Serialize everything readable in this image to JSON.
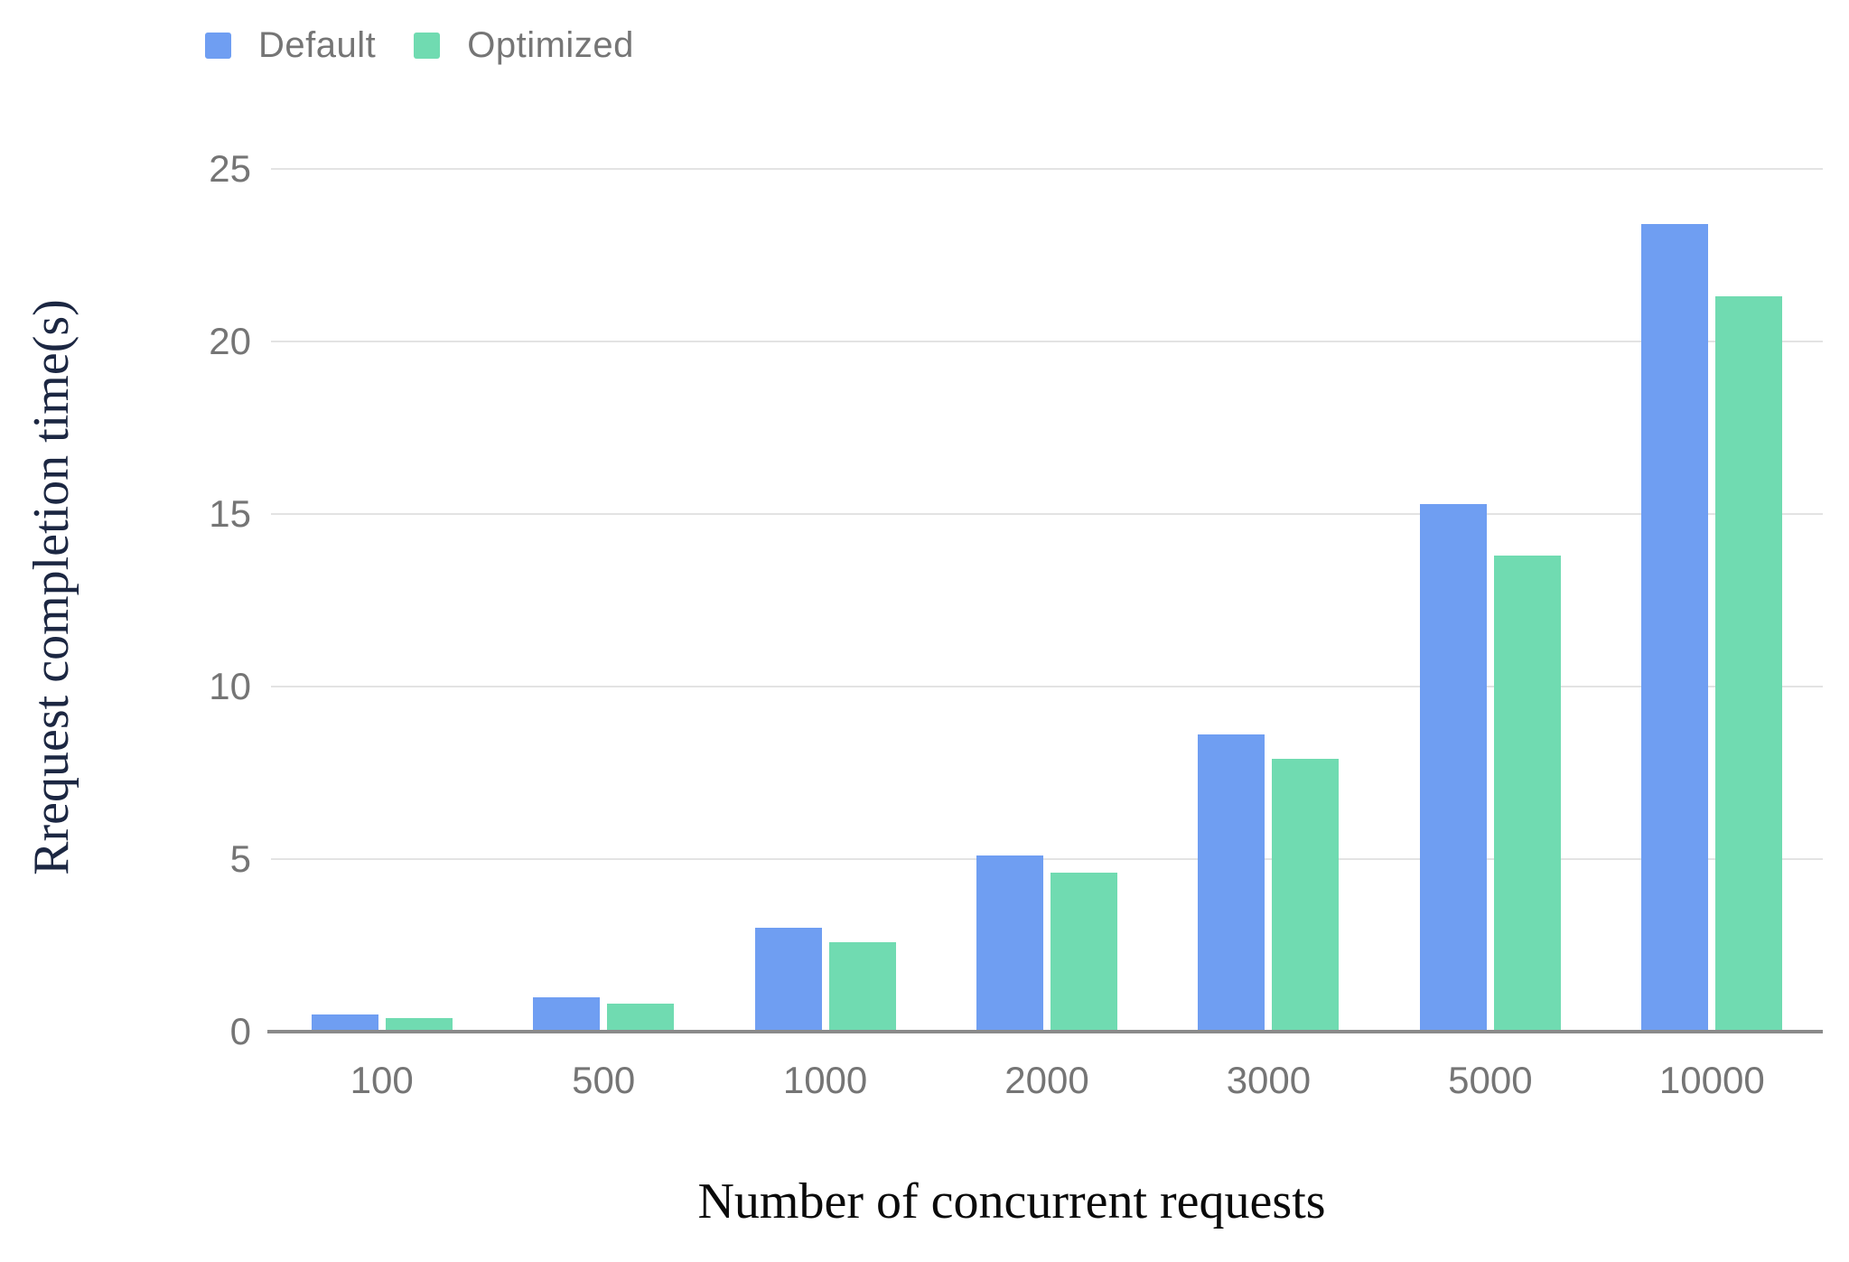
{
  "legend": {
    "items": [
      {
        "label": "Default",
        "color": "#6f9ef2"
      },
      {
        "label": "Optimized",
        "color": "#70dbb1"
      }
    ]
  },
  "chart_data": {
    "type": "bar",
    "title": "",
    "categories": [
      "100",
      "500",
      "1000",
      "2000",
      "3000",
      "5000",
      "10000"
    ],
    "series": [
      {
        "name": "Default",
        "color": "#6f9ef2",
        "values": [
          0.5,
          1.0,
          3.0,
          5.1,
          8.6,
          15.3,
          23.4
        ]
      },
      {
        "name": "Optimized",
        "color": "#70dbb1",
        "values": [
          0.4,
          0.8,
          2.6,
          4.6,
          7.9,
          13.8,
          21.3
        ]
      }
    ],
    "xlabel": "Number of concurrent requests",
    "ylabel": "Rrequest completion time(s)",
    "ylim": [
      0,
      25
    ],
    "yticks": [
      0,
      5,
      10,
      15,
      20,
      25
    ],
    "grid": "horizontal",
    "legend_position": "top-left"
  },
  "colors": {
    "background": "#ffffff",
    "gridline": "#e3e3e3",
    "axis_line": "#8a8a8a",
    "tick_text": "#757575",
    "legend_text": "#757575",
    "y_axis_title_text": "#1c2742",
    "x_axis_title_text": "#0a0a0a"
  }
}
